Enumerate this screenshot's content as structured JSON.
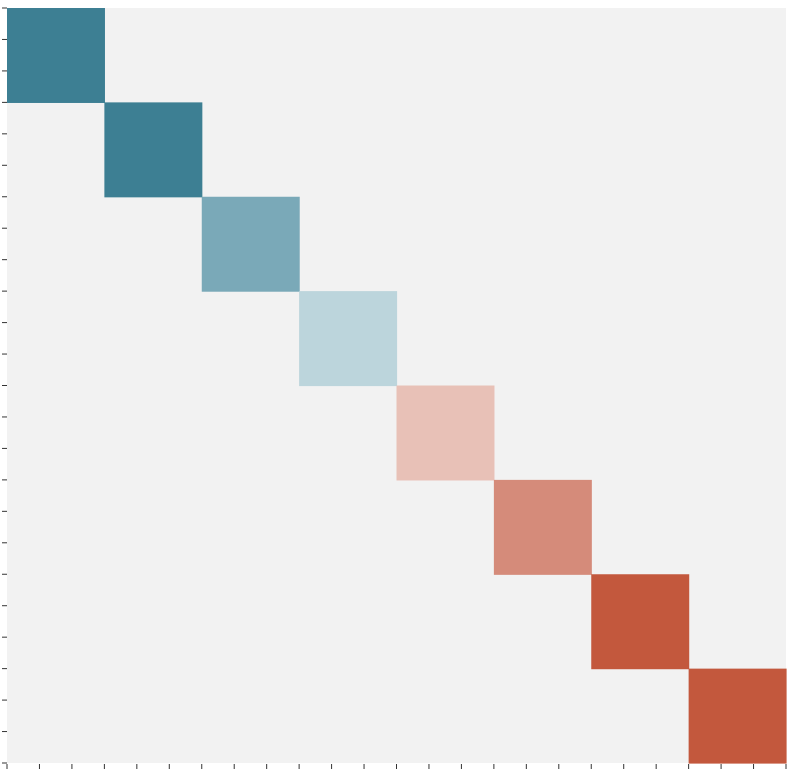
{
  "chart_data": {
    "type": "heatmap",
    "title": "",
    "xlabel": "",
    "ylabel": "",
    "rows": 8,
    "cols": 8,
    "block_count": 8,
    "block_colors": [
      "#3d7f93",
      "#3d7f93",
      "#7aa9b8",
      "#bcd5dc",
      "#e8c1b7",
      "#d58b7a",
      "#c3583d",
      "#c3583d"
    ],
    "background_color": "#f2f2f2",
    "minor_ticks_per_block": 3,
    "grid": false,
    "legend": "none"
  }
}
